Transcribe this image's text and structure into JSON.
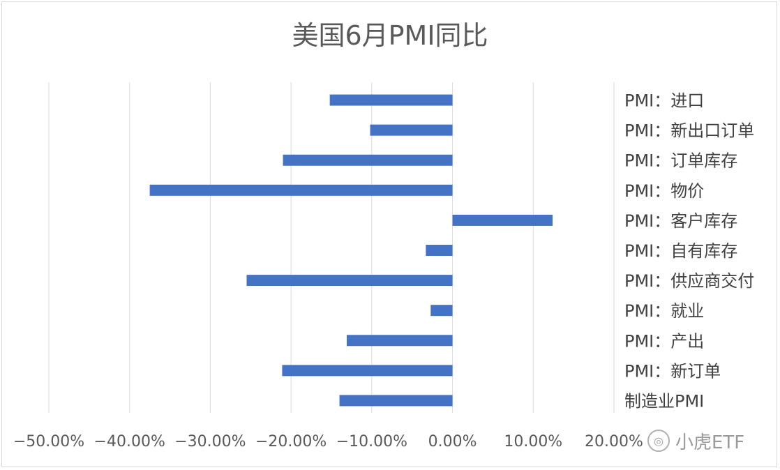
{
  "chart_data": {
    "type": "bar",
    "orientation": "horizontal",
    "title": "美国6月PMI同比",
    "categories": [
      "PMI：进口",
      "PMI：新出口订单",
      "PMI：订单库存",
      "PMI：物价",
      "PMI：客户库存",
      "PMI：自有库存",
      "PMI：供应商交付",
      "PMI：就业",
      "PMI：产出",
      "PMI：新订单",
      "制造业PMI"
    ],
    "values": [
      -15.2,
      -10.2,
      -21.0,
      -37.5,
      12.4,
      -3.3,
      -25.5,
      -2.7,
      -13.1,
      -21.1,
      -14.0
    ],
    "xlim": [
      -50,
      20
    ],
    "tick_values": [
      -50,
      -40,
      -30,
      -20,
      -10,
      0,
      10,
      20
    ],
    "tick_labels": [
      "−50.00%",
      "−40.00%",
      "−30.00%",
      "−20.00%",
      "−10.00%",
      "0.00%",
      "10.00%",
      "20.00%"
    ],
    "grid": true,
    "bar_color": "#4472c4"
  },
  "watermark": {
    "text": "小虎ETF"
  }
}
